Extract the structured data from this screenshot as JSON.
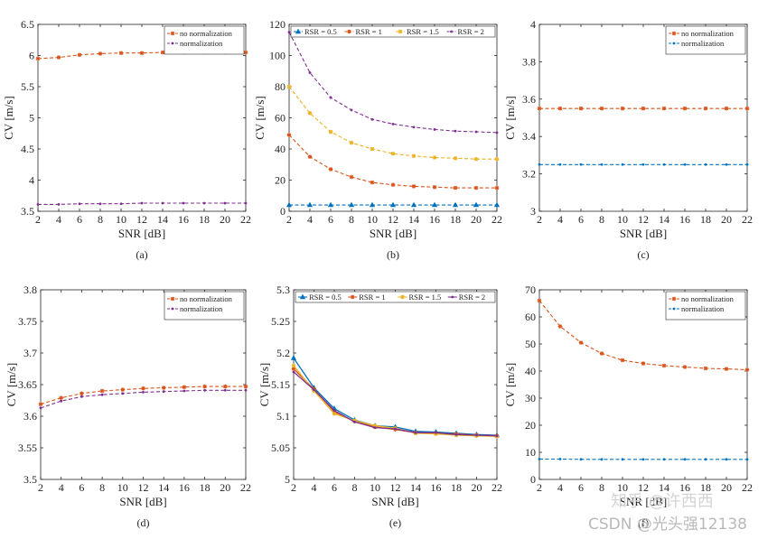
{
  "figure": {
    "watermark_zhihu": "知乎 @许西西",
    "watermark_csdn": "CSDN @光头强12138"
  },
  "chart_data": [
    {
      "id": "a",
      "type": "line",
      "caption": "(a)",
      "xlabel": "SNR [dB]",
      "ylabel": "CV [m/s]",
      "xlim": [
        2,
        22
      ],
      "ylim": [
        3.5,
        6.5
      ],
      "xticks": [
        2,
        4,
        6,
        8,
        10,
        12,
        14,
        16,
        18,
        20,
        22
      ],
      "yticks": [
        3.5,
        4,
        4.5,
        5,
        5.5,
        6,
        6.5
      ],
      "ytick_labels": [
        "3.5",
        "4",
        "4.5",
        "5",
        "5.5",
        "6",
        "6.5"
      ],
      "legend_position": "top-right",
      "x": [
        2,
        4,
        6,
        8,
        10,
        12,
        14,
        16,
        18,
        20,
        22
      ],
      "series": [
        {
          "name": "no normalization",
          "color": "#d95319",
          "marker": "star",
          "values": [
            5.95,
            5.97,
            6.01,
            6.03,
            6.04,
            6.04,
            6.05,
            6.05,
            6.05,
            6.05,
            6.05
          ]
        },
        {
          "name": "normalization",
          "color": "#7e2f8e",
          "marker": "dot",
          "values": [
            3.61,
            3.61,
            3.62,
            3.62,
            3.62,
            3.63,
            3.63,
            3.63,
            3.63,
            3.63,
            3.63
          ]
        }
      ]
    },
    {
      "id": "b",
      "type": "line",
      "caption": "(b)",
      "xlabel": "SNR [dB]",
      "ylabel": "CV [m/s]",
      "xlim": [
        2,
        22
      ],
      "ylim": [
        0,
        120
      ],
      "xticks": [
        2,
        4,
        6,
        8,
        10,
        12,
        14,
        16,
        18,
        20,
        22
      ],
      "yticks": [
        0,
        20,
        40,
        60,
        80,
        100,
        120
      ],
      "ytick_labels": [
        "0",
        "20",
        "40",
        "60",
        "80",
        "100",
        "120"
      ],
      "legend_position": "top",
      "x": [
        2,
        4,
        6,
        8,
        10,
        12,
        14,
        16,
        18,
        20,
        22
      ],
      "series": [
        {
          "name": "RSR = 0.5",
          "color": "#0072bd",
          "marker": "triangle",
          "values": [
            4,
            4,
            4,
            4,
            4,
            4,
            4,
            4,
            4,
            4,
            4
          ]
        },
        {
          "name": "RSR = 1",
          "color": "#d95319",
          "marker": "star",
          "values": [
            49,
            35,
            27,
            22,
            18.5,
            17,
            16,
            15.5,
            15,
            15,
            15
          ]
        },
        {
          "name": "RSR = 1.5",
          "color": "#edb120",
          "marker": "star",
          "values": [
            80,
            63,
            51,
            44,
            40,
            37,
            35.5,
            34.5,
            34,
            33.5,
            33.5
          ]
        },
        {
          "name": "RSR = 2",
          "color": "#7e2f8e",
          "marker": "dot",
          "values": [
            115,
            89,
            73,
            65,
            59,
            56,
            54,
            52.5,
            51.5,
            51,
            50.5
          ]
        }
      ]
    },
    {
      "id": "c",
      "type": "line",
      "caption": "(c)",
      "xlabel": "SNR [dB]",
      "ylabel": "CV [m/s]",
      "xlim": [
        2,
        22
      ],
      "ylim": [
        3,
        4
      ],
      "xticks": [
        2,
        4,
        6,
        8,
        10,
        12,
        14,
        16,
        18,
        20,
        22
      ],
      "yticks": [
        3,
        3.2,
        3.4,
        3.6,
        3.8,
        4
      ],
      "ytick_labels": [
        "3",
        "3.2",
        "3.4",
        "3.6",
        "3.8",
        "4"
      ],
      "legend_position": "top-right",
      "x": [
        2,
        4,
        6,
        8,
        10,
        12,
        14,
        16,
        18,
        20,
        22
      ],
      "series": [
        {
          "name": "no normalization",
          "color": "#d95319",
          "marker": "star",
          "values": [
            3.55,
            3.55,
            3.55,
            3.55,
            3.55,
            3.55,
            3.55,
            3.55,
            3.55,
            3.55,
            3.55
          ]
        },
        {
          "name": "normalization",
          "color": "#0072bd",
          "marker": "dot",
          "values": [
            3.25,
            3.25,
            3.25,
            3.25,
            3.25,
            3.25,
            3.25,
            3.25,
            3.25,
            3.25,
            3.25
          ]
        }
      ]
    },
    {
      "id": "d",
      "type": "line",
      "caption": "(d)",
      "xlabel": "SNR [dB]",
      "ylabel": "CV [m/s]",
      "xlim": [
        2,
        22
      ],
      "ylim": [
        3.5,
        3.8
      ],
      "xticks": [
        2,
        4,
        6,
        8,
        10,
        12,
        14,
        16,
        18,
        20,
        22
      ],
      "yticks": [
        3.5,
        3.55,
        3.6,
        3.65,
        3.7,
        3.75,
        3.8
      ],
      "ytick_labels": [
        "3.5",
        "3.55",
        "3.6",
        "3.65",
        "3.7",
        "3.75",
        "3.8"
      ],
      "legend_position": "top-right",
      "x": [
        2,
        4,
        6,
        8,
        10,
        12,
        14,
        16,
        18,
        20,
        22
      ],
      "series": [
        {
          "name": "no normalization",
          "color": "#d95319",
          "marker": "star",
          "values": [
            3.619,
            3.629,
            3.636,
            3.64,
            3.642,
            3.644,
            3.645,
            3.646,
            3.647,
            3.647,
            3.647
          ]
        },
        {
          "name": "normalization",
          "color": "#7e2f8e",
          "marker": "dot",
          "values": [
            3.613,
            3.624,
            3.631,
            3.634,
            3.636,
            3.638,
            3.639,
            3.64,
            3.641,
            3.641,
            3.641
          ]
        }
      ]
    },
    {
      "id": "e",
      "type": "line",
      "caption": "(e)",
      "xlabel": "SNR [dB]",
      "ylabel": "CV [m/s]",
      "xlim": [
        2,
        22
      ],
      "ylim": [
        5,
        5.3
      ],
      "xticks": [
        2,
        4,
        6,
        8,
        10,
        12,
        14,
        16,
        18,
        20,
        22
      ],
      "yticks": [
        5,
        5.05,
        5.1,
        5.15,
        5.2,
        5.25,
        5.3
      ],
      "ytick_labels": [
        "5",
        "5.05",
        "5.1",
        "5.15",
        "5.2",
        "5.25",
        "5.3"
      ],
      "legend_position": "top",
      "x": [
        2,
        4,
        6,
        8,
        10,
        12,
        14,
        16,
        18,
        20,
        22
      ],
      "series": [
        {
          "name": "RSR = 0.5",
          "color": "#0072bd",
          "marker": "triangle",
          "values": [
            5.192,
            5.145,
            5.112,
            5.094,
            5.085,
            5.083,
            5.076,
            5.075,
            5.073,
            5.071,
            5.07
          ]
        },
        {
          "name": "RSR = 1",
          "color": "#d95319",
          "marker": "star",
          "values": [
            5.175,
            5.143,
            5.107,
            5.092,
            5.083,
            5.079,
            5.074,
            5.073,
            5.072,
            5.07,
            5.069
          ]
        },
        {
          "name": "RSR = 1.5",
          "color": "#edb120",
          "marker": "star",
          "values": [
            5.18,
            5.14,
            5.104,
            5.093,
            5.085,
            5.081,
            5.073,
            5.072,
            5.07,
            5.069,
            5.068
          ]
        },
        {
          "name": "RSR = 2",
          "color": "#7e2f8e",
          "marker": "dot",
          "values": [
            5.17,
            5.142,
            5.109,
            5.091,
            5.082,
            5.08,
            5.074,
            5.074,
            5.071,
            5.07,
            5.069
          ]
        }
      ]
    },
    {
      "id": "f",
      "type": "line",
      "caption": "(f)",
      "xlabel": "SNR [dB]",
      "ylabel": "CV [m/s]",
      "xlim": [
        2,
        22
      ],
      "ylim": [
        0,
        70
      ],
      "xticks": [
        2,
        4,
        6,
        8,
        10,
        12,
        14,
        16,
        18,
        20,
        22
      ],
      "yticks": [
        0,
        10,
        20,
        30,
        40,
        50,
        60,
        70
      ],
      "ytick_labels": [
        "0",
        "10",
        "20",
        "30",
        "40",
        "50",
        "60",
        "70"
      ],
      "legend_position": "top-right",
      "x": [
        2,
        4,
        6,
        8,
        10,
        12,
        14,
        16,
        18,
        20,
        22
      ],
      "series": [
        {
          "name": "no normalization",
          "color": "#d95319",
          "marker": "star",
          "values": [
            66,
            56.5,
            50.5,
            46.5,
            44,
            42.8,
            42,
            41.5,
            41,
            40.8,
            40.5
          ]
        },
        {
          "name": "normalization",
          "color": "#0072bd",
          "marker": "dot",
          "values": [
            7.5,
            7.5,
            7.4,
            7.4,
            7.4,
            7.4,
            7.4,
            7.4,
            7.4,
            7.4,
            7.4
          ]
        }
      ]
    }
  ]
}
